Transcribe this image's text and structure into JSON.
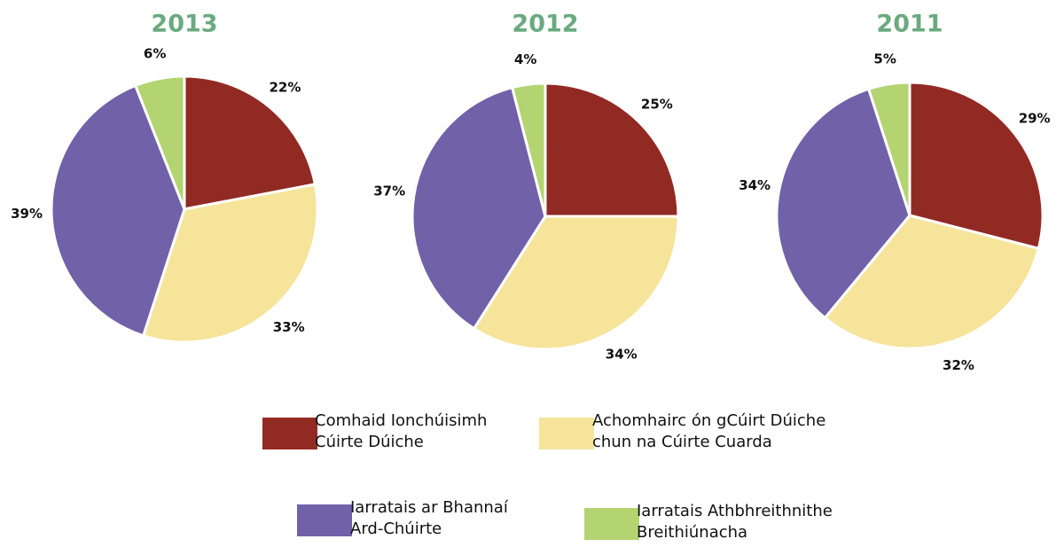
{
  "chart_data": [
    {
      "type": "pie",
      "title": "2013",
      "categories": [
        "Comhaid Ionchúisimh Cúirte Dúiche",
        "Achomhairc ón gCúirt Dúiche chun na Cúirte Cuarda",
        "Iarratais ar Bhannaí Ard-Chúirte",
        "Iarratais Athbhreithnithe Breithiúnacha"
      ],
      "values": [
        22,
        33,
        39,
        6
      ],
      "value_labels": [
        "22%",
        "33%",
        "39%",
        "6%"
      ],
      "colors": [
        "#922a24",
        "#f5e49a",
        "#7161a9",
        "#b3d470"
      ]
    },
    {
      "type": "pie",
      "title": "2012",
      "categories": [
        "Comhaid Ionchúisimh Cúirte Dúiche",
        "Achomhairc ón gCúirt Dúiche chun na Cúirte Cuarda",
        "Iarratais ar Bhannaí Ard-Chúirte",
        "Iarratais Athbhreithnithe Breithiúnacha"
      ],
      "values": [
        25,
        34,
        37,
        4
      ],
      "value_labels": [
        "25%",
        "34%",
        "37%",
        "4%"
      ],
      "colors": [
        "#922a24",
        "#f5e49a",
        "#7161a9",
        "#b3d470"
      ]
    },
    {
      "type": "pie",
      "title": "2011",
      "categories": [
        "Comhaid Ionchúisimh Cúirte Dúiche",
        "Achomhairc ón gCúirt Dúiche chun na Cúirte Cuarda",
        "Iarratais ar Bhannaí Ard-Chúirte",
        "Iarratais Athbhreithnithe Breithiúnacha"
      ],
      "values": [
        29,
        32,
        34,
        5
      ],
      "value_labels": [
        "29%",
        "32%",
        "34%",
        "5%"
      ],
      "colors": [
        "#922a24",
        "#f5e49a",
        "#7161a9",
        "#b3d470"
      ]
    }
  ]
}
